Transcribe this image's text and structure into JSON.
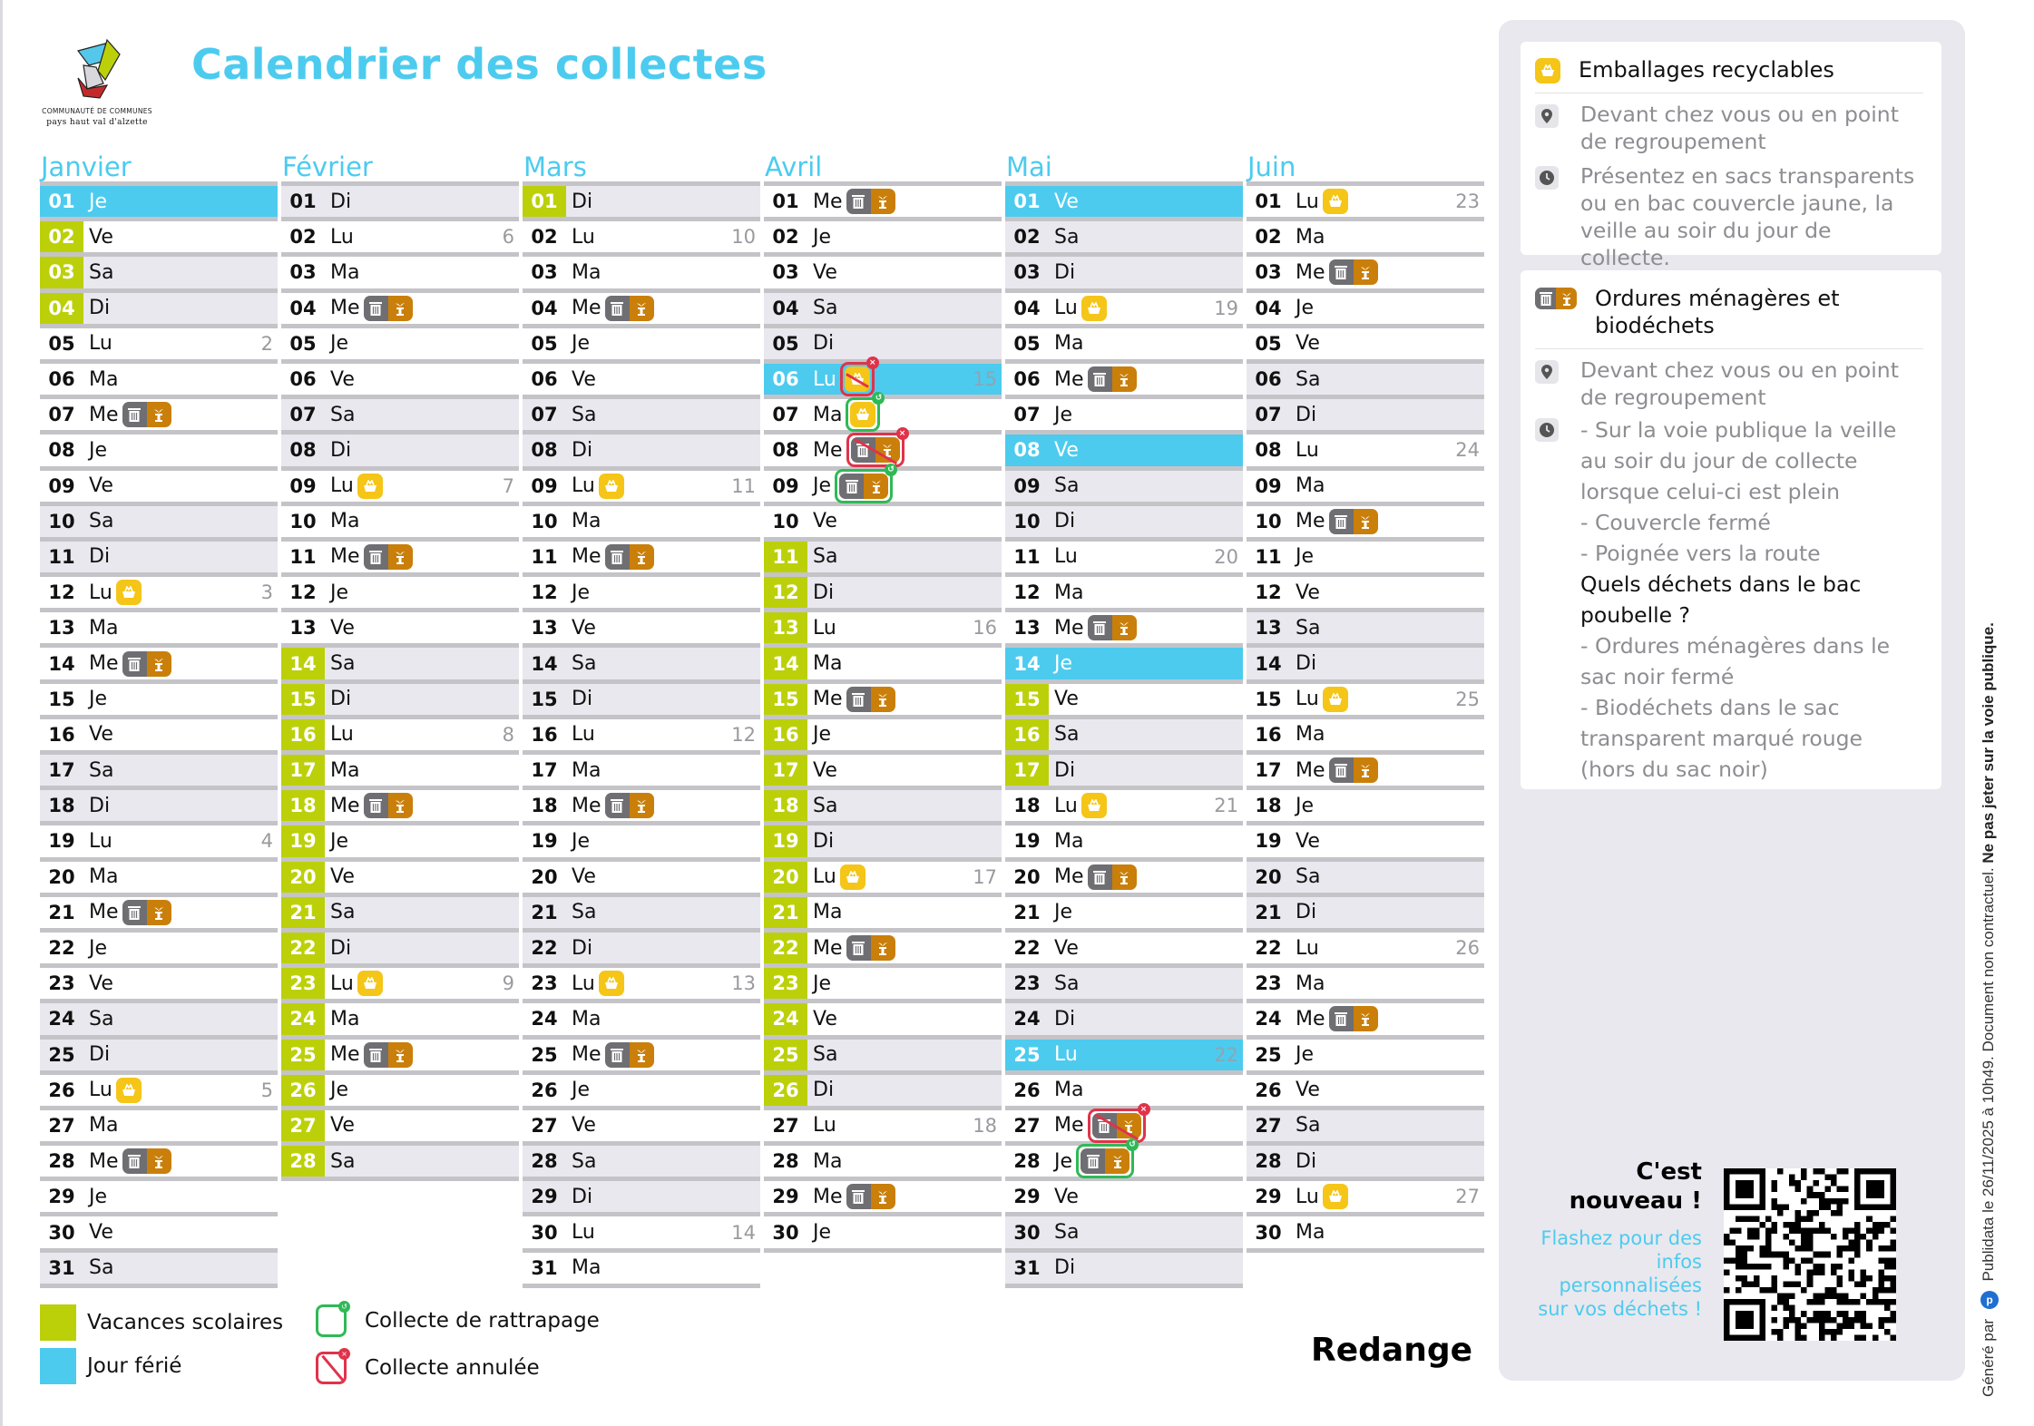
{
  "header": {
    "title": "Calendrier des collectes",
    "logo": {
      "line1": "COMMUNAUTÉ DE COMMUNES",
      "line2": "pays haut val d'alzette"
    }
  },
  "colors": {
    "accent": "#4ccbef",
    "vacances": "#bcd00a",
    "ferie": "#4ccbef",
    "emballages": "#f5c518",
    "ordures": "#6f6e73",
    "biodechets": "#c97f0a",
    "rattrapage": "#2fb956",
    "annulee": "#e0334a",
    "weekend_row": "#e9e8ee"
  },
  "months": [
    {
      "name": "Janvier",
      "days": [
        {
          "n": "01",
          "d": "Je",
          "ferie": true
        },
        {
          "n": "02",
          "d": "Ve",
          "vac": true
        },
        {
          "n": "03",
          "d": "Sa",
          "vac": true
        },
        {
          "n": "04",
          "d": "Di",
          "vac": true
        },
        {
          "n": "05",
          "d": "Lu",
          "w": "2"
        },
        {
          "n": "06",
          "d": "Ma"
        },
        {
          "n": "07",
          "d": "Me",
          "c": [
            "om"
          ]
        },
        {
          "n": "08",
          "d": "Je"
        },
        {
          "n": "09",
          "d": "Ve"
        },
        {
          "n": "10",
          "d": "Sa"
        },
        {
          "n": "11",
          "d": "Di"
        },
        {
          "n": "12",
          "d": "Lu",
          "w": "3",
          "c": [
            "emb"
          ]
        },
        {
          "n": "13",
          "d": "Ma"
        },
        {
          "n": "14",
          "d": "Me",
          "c": [
            "om"
          ]
        },
        {
          "n": "15",
          "d": "Je"
        },
        {
          "n": "16",
          "d": "Ve"
        },
        {
          "n": "17",
          "d": "Sa"
        },
        {
          "n": "18",
          "d": "Di"
        },
        {
          "n": "19",
          "d": "Lu",
          "w": "4"
        },
        {
          "n": "20",
          "d": "Ma"
        },
        {
          "n": "21",
          "d": "Me",
          "c": [
            "om"
          ]
        },
        {
          "n": "22",
          "d": "Je"
        },
        {
          "n": "23",
          "d": "Ve"
        },
        {
          "n": "24",
          "d": "Sa"
        },
        {
          "n": "25",
          "d": "Di"
        },
        {
          "n": "26",
          "d": "Lu",
          "w": "5",
          "c": [
            "emb"
          ]
        },
        {
          "n": "27",
          "d": "Ma"
        },
        {
          "n": "28",
          "d": "Me",
          "c": [
            "om"
          ]
        },
        {
          "n": "29",
          "d": "Je"
        },
        {
          "n": "30",
          "d": "Ve"
        },
        {
          "n": "31",
          "d": "Sa"
        }
      ]
    },
    {
      "name": "Février",
      "days": [
        {
          "n": "01",
          "d": "Di"
        },
        {
          "n": "02",
          "d": "Lu",
          "w": "6"
        },
        {
          "n": "03",
          "d": "Ma"
        },
        {
          "n": "04",
          "d": "Me",
          "c": [
            "om"
          ]
        },
        {
          "n": "05",
          "d": "Je"
        },
        {
          "n": "06",
          "d": "Ve"
        },
        {
          "n": "07",
          "d": "Sa"
        },
        {
          "n": "08",
          "d": "Di"
        },
        {
          "n": "09",
          "d": "Lu",
          "w": "7",
          "c": [
            "emb"
          ]
        },
        {
          "n": "10",
          "d": "Ma"
        },
        {
          "n": "11",
          "d": "Me",
          "c": [
            "om"
          ]
        },
        {
          "n": "12",
          "d": "Je"
        },
        {
          "n": "13",
          "d": "Ve"
        },
        {
          "n": "14",
          "d": "Sa",
          "vac": true
        },
        {
          "n": "15",
          "d": "Di",
          "vac": true
        },
        {
          "n": "16",
          "d": "Lu",
          "w": "8",
          "vac": true
        },
        {
          "n": "17",
          "d": "Ma",
          "vac": true
        },
        {
          "n": "18",
          "d": "Me",
          "vac": true,
          "c": [
            "om"
          ]
        },
        {
          "n": "19",
          "d": "Je",
          "vac": true
        },
        {
          "n": "20",
          "d": "Ve",
          "vac": true
        },
        {
          "n": "21",
          "d": "Sa",
          "vac": true
        },
        {
          "n": "22",
          "d": "Di",
          "vac": true
        },
        {
          "n": "23",
          "d": "Lu",
          "w": "9",
          "vac": true,
          "c": [
            "emb"
          ]
        },
        {
          "n": "24",
          "d": "Ma",
          "vac": true
        },
        {
          "n": "25",
          "d": "Me",
          "vac": true,
          "c": [
            "om"
          ]
        },
        {
          "n": "26",
          "d": "Je",
          "vac": true
        },
        {
          "n": "27",
          "d": "Ve",
          "vac": true
        },
        {
          "n": "28",
          "d": "Sa",
          "vac": true
        }
      ]
    },
    {
      "name": "Mars",
      "days": [
        {
          "n": "01",
          "d": "Di",
          "vac": true
        },
        {
          "n": "02",
          "d": "Lu",
          "w": "10"
        },
        {
          "n": "03",
          "d": "Ma"
        },
        {
          "n": "04",
          "d": "Me",
          "c": [
            "om"
          ]
        },
        {
          "n": "05",
          "d": "Je"
        },
        {
          "n": "06",
          "d": "Ve"
        },
        {
          "n": "07",
          "d": "Sa"
        },
        {
          "n": "08",
          "d": "Di"
        },
        {
          "n": "09",
          "d": "Lu",
          "w": "11",
          "c": [
            "emb"
          ]
        },
        {
          "n": "10",
          "d": "Ma"
        },
        {
          "n": "11",
          "d": "Me",
          "c": [
            "om"
          ]
        },
        {
          "n": "12",
          "d": "Je"
        },
        {
          "n": "13",
          "d": "Ve"
        },
        {
          "n": "14",
          "d": "Sa"
        },
        {
          "n": "15",
          "d": "Di"
        },
        {
          "n": "16",
          "d": "Lu",
          "w": "12"
        },
        {
          "n": "17",
          "d": "Ma"
        },
        {
          "n": "18",
          "d": "Me",
          "c": [
            "om"
          ]
        },
        {
          "n": "19",
          "d": "Je"
        },
        {
          "n": "20",
          "d": "Ve"
        },
        {
          "n": "21",
          "d": "Sa"
        },
        {
          "n": "22",
          "d": "Di"
        },
        {
          "n": "23",
          "d": "Lu",
          "w": "13",
          "c": [
            "emb"
          ]
        },
        {
          "n": "24",
          "d": "Ma"
        },
        {
          "n": "25",
          "d": "Me",
          "c": [
            "om"
          ]
        },
        {
          "n": "26",
          "d": "Je"
        },
        {
          "n": "27",
          "d": "Ve"
        },
        {
          "n": "28",
          "d": "Sa"
        },
        {
          "n": "29",
          "d": "Di"
        },
        {
          "n": "30",
          "d": "Lu",
          "w": "14"
        },
        {
          "n": "31",
          "d": "Ma"
        }
      ]
    },
    {
      "name": "Avril",
      "days": [
        {
          "n": "01",
          "d": "Me",
          "c": [
            "om"
          ]
        },
        {
          "n": "02",
          "d": "Je"
        },
        {
          "n": "03",
          "d": "Ve"
        },
        {
          "n": "04",
          "d": "Sa"
        },
        {
          "n": "05",
          "d": "Di"
        },
        {
          "n": "06",
          "d": "Lu",
          "w": "15",
          "ferie": true,
          "c": [
            "emb"
          ],
          "status": "annulee"
        },
        {
          "n": "07",
          "d": "Ma",
          "c": [
            "emb"
          ],
          "status": "rattrapage"
        },
        {
          "n": "08",
          "d": "Me",
          "c": [
            "om"
          ],
          "status": "annulee"
        },
        {
          "n": "09",
          "d": "Je",
          "c": [
            "om"
          ],
          "status": "rattrapage"
        },
        {
          "n": "10",
          "d": "Ve"
        },
        {
          "n": "11",
          "d": "Sa",
          "vac": true
        },
        {
          "n": "12",
          "d": "Di",
          "vac": true
        },
        {
          "n": "13",
          "d": "Lu",
          "w": "16",
          "vac": true
        },
        {
          "n": "14",
          "d": "Ma",
          "vac": true
        },
        {
          "n": "15",
          "d": "Me",
          "vac": true,
          "c": [
            "om"
          ]
        },
        {
          "n": "16",
          "d": "Je",
          "vac": true
        },
        {
          "n": "17",
          "d": "Ve",
          "vac": true
        },
        {
          "n": "18",
          "d": "Sa",
          "vac": true
        },
        {
          "n": "19",
          "d": "Di",
          "vac": true
        },
        {
          "n": "20",
          "d": "Lu",
          "w": "17",
          "vac": true,
          "c": [
            "emb"
          ]
        },
        {
          "n": "21",
          "d": "Ma",
          "vac": true
        },
        {
          "n": "22",
          "d": "Me",
          "vac": true,
          "c": [
            "om"
          ]
        },
        {
          "n": "23",
          "d": "Je",
          "vac": true
        },
        {
          "n": "24",
          "d": "Ve",
          "vac": true
        },
        {
          "n": "25",
          "d": "Sa",
          "vac": true
        },
        {
          "n": "26",
          "d": "Di",
          "vac": true
        },
        {
          "n": "27",
          "d": "Lu",
          "w": "18"
        },
        {
          "n": "28",
          "d": "Ma"
        },
        {
          "n": "29",
          "d": "Me",
          "c": [
            "om"
          ]
        },
        {
          "n": "30",
          "d": "Je"
        }
      ]
    },
    {
      "name": "Mai",
      "days": [
        {
          "n": "01",
          "d": "Ve",
          "ferie": true
        },
        {
          "n": "02",
          "d": "Sa"
        },
        {
          "n": "03",
          "d": "Di"
        },
        {
          "n": "04",
          "d": "Lu",
          "w": "19",
          "c": [
            "emb"
          ]
        },
        {
          "n": "05",
          "d": "Ma"
        },
        {
          "n": "06",
          "d": "Me",
          "c": [
            "om"
          ]
        },
        {
          "n": "07",
          "d": "Je"
        },
        {
          "n": "08",
          "d": "Ve",
          "ferie": true
        },
        {
          "n": "09",
          "d": "Sa"
        },
        {
          "n": "10",
          "d": "Di"
        },
        {
          "n": "11",
          "d": "Lu",
          "w": "20"
        },
        {
          "n": "12",
          "d": "Ma"
        },
        {
          "n": "13",
          "d": "Me",
          "c": [
            "om"
          ]
        },
        {
          "n": "14",
          "d": "Je",
          "ferie": true
        },
        {
          "n": "15",
          "d": "Ve",
          "vac": true
        },
        {
          "n": "16",
          "d": "Sa",
          "vac": true
        },
        {
          "n": "17",
          "d": "Di",
          "vac": true
        },
        {
          "n": "18",
          "d": "Lu",
          "w": "21",
          "c": [
            "emb"
          ]
        },
        {
          "n": "19",
          "d": "Ma"
        },
        {
          "n": "20",
          "d": "Me",
          "c": [
            "om"
          ]
        },
        {
          "n": "21",
          "d": "Je"
        },
        {
          "n": "22",
          "d": "Ve"
        },
        {
          "n": "23",
          "d": "Sa"
        },
        {
          "n": "24",
          "d": "Di"
        },
        {
          "n": "25",
          "d": "Lu",
          "w": "22",
          "ferie": true
        },
        {
          "n": "26",
          "d": "Ma"
        },
        {
          "n": "27",
          "d": "Me",
          "c": [
            "om"
          ],
          "status": "annulee"
        },
        {
          "n": "28",
          "d": "Je",
          "c": [
            "om"
          ],
          "status": "rattrapage"
        },
        {
          "n": "29",
          "d": "Ve"
        },
        {
          "n": "30",
          "d": "Sa"
        },
        {
          "n": "31",
          "d": "Di"
        }
      ]
    },
    {
      "name": "Juin",
      "days": [
        {
          "n": "01",
          "d": "Lu",
          "w": "23",
          "c": [
            "emb"
          ]
        },
        {
          "n": "02",
          "d": "Ma"
        },
        {
          "n": "03",
          "d": "Me",
          "c": [
            "om"
          ]
        },
        {
          "n": "04",
          "d": "Je"
        },
        {
          "n": "05",
          "d": "Ve"
        },
        {
          "n": "06",
          "d": "Sa"
        },
        {
          "n": "07",
          "d": "Di"
        },
        {
          "n": "08",
          "d": "Lu",
          "w": "24"
        },
        {
          "n": "09",
          "d": "Ma"
        },
        {
          "n": "10",
          "d": "Me",
          "c": [
            "om"
          ]
        },
        {
          "n": "11",
          "d": "Je"
        },
        {
          "n": "12",
          "d": "Ve"
        },
        {
          "n": "13",
          "d": "Sa"
        },
        {
          "n": "14",
          "d": "Di"
        },
        {
          "n": "15",
          "d": "Lu",
          "w": "25",
          "c": [
            "emb"
          ]
        },
        {
          "n": "16",
          "d": "Ma"
        },
        {
          "n": "17",
          "d": "Me",
          "c": [
            "om"
          ]
        },
        {
          "n": "18",
          "d": "Je"
        },
        {
          "n": "19",
          "d": "Ve"
        },
        {
          "n": "20",
          "d": "Sa"
        },
        {
          "n": "21",
          "d": "Di"
        },
        {
          "n": "22",
          "d": "Lu",
          "w": "26"
        },
        {
          "n": "23",
          "d": "Ma"
        },
        {
          "n": "24",
          "d": "Me",
          "c": [
            "om"
          ]
        },
        {
          "n": "25",
          "d": "Je"
        },
        {
          "n": "26",
          "d": "Ve"
        },
        {
          "n": "27",
          "d": "Sa"
        },
        {
          "n": "28",
          "d": "Di"
        },
        {
          "n": "29",
          "d": "Lu",
          "w": "27",
          "c": [
            "emb"
          ]
        },
        {
          "n": "30",
          "d": "Ma"
        }
      ]
    }
  ],
  "legend": {
    "vacances": "Vacances scolaires",
    "ferie": "Jour férié",
    "rattrapage": "Collecte de rattrapage",
    "annulee": "Collecte annulée"
  },
  "commune": "Redange",
  "panel": {
    "emballages": {
      "title": "Emballages recyclables",
      "where": "Devant chez vous ou en point de regroupement",
      "when": "Présentez en sacs transparents ou en bac couvercle jaune, la veille au soir du jour de collecte."
    },
    "ordures": {
      "title": "Ordures ménagères et biodéchets",
      "where": "Devant chez vous ou en point de regroupement",
      "when_lines": [
        "- Sur la voie publique la veille au soir du jour de collecte lorsque celui-ci est plein",
        "- Couvercle fermé",
        "- Poignée vers la route"
      ],
      "question": "Quels déchets dans le bac poubelle ?",
      "answer_lines": [
        "- Ordures ménagères dans le sac noir fermé",
        "- Biodéchets dans le sac transparent marqué rouge (hors du sac noir)"
      ]
    },
    "news": {
      "title": "C'est nouveau !",
      "subtitle": "Flashez pour des infos personnalisées sur vos déchets !"
    }
  },
  "footer": {
    "generated_by": "Généré par",
    "brand": "Publidata",
    "date_text": "le 26/11/2025 à 10h49. Document non contractuel.",
    "warning": "Ne pas jeter sur la voie publique."
  }
}
